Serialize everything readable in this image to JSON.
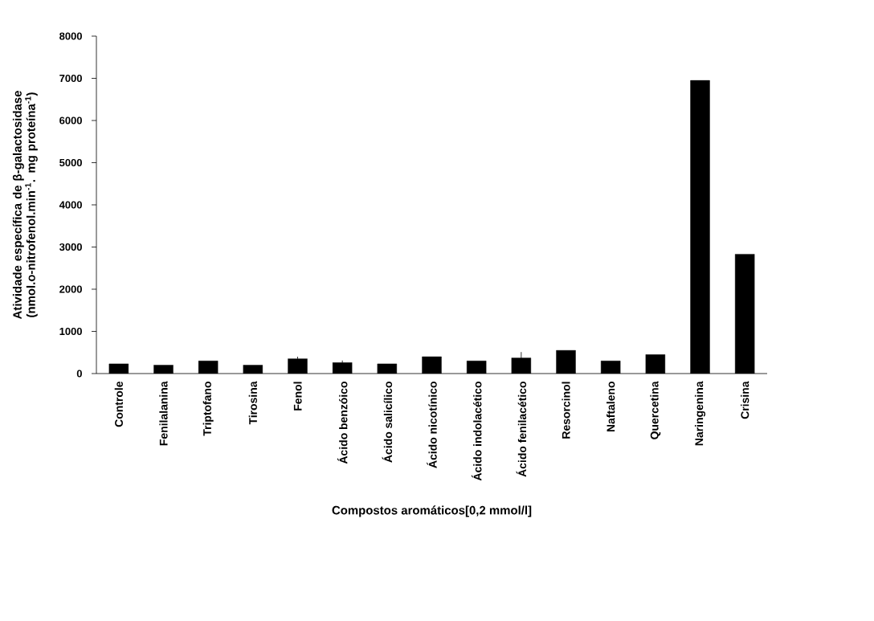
{
  "chart_data": {
    "type": "bar",
    "categories": [
      "Controle",
      "Fenilalanina",
      "Triptofano",
      "Tirosina",
      "Fenol",
      "Ácido benzóico",
      "Ácido salicílico",
      "Ácido nicotínico",
      "Ácido indolacético",
      "Ácido fenilacético",
      "Resorcinol",
      "Naftaleno",
      "Quercetina",
      "Naringenina",
      "Crisina"
    ],
    "values": [
      230,
      200,
      300,
      200,
      350,
      260,
      230,
      400,
      300,
      370,
      550,
      300,
      450,
      6950,
      2830
    ],
    "errors": [
      null,
      null,
      null,
      null,
      50,
      50,
      null,
      null,
      null,
      140,
      null,
      null,
      null,
      null,
      null
    ],
    "color": "#000000",
    "xlabel": "Compostos aromáticos[0,2 mmol/l]",
    "ylabel": "Atividade específica de β-galactosidase (nmol.o-nitrofenol.min$^{-1}$.  mg proteína$^{-1}$)",
    "ylim": [
      0,
      8000
    ],
    "yticks": [
      0,
      1000,
      2000,
      3000,
      4000,
      5000,
      6000,
      7000,
      8000
    ],
    "grid": false
  }
}
